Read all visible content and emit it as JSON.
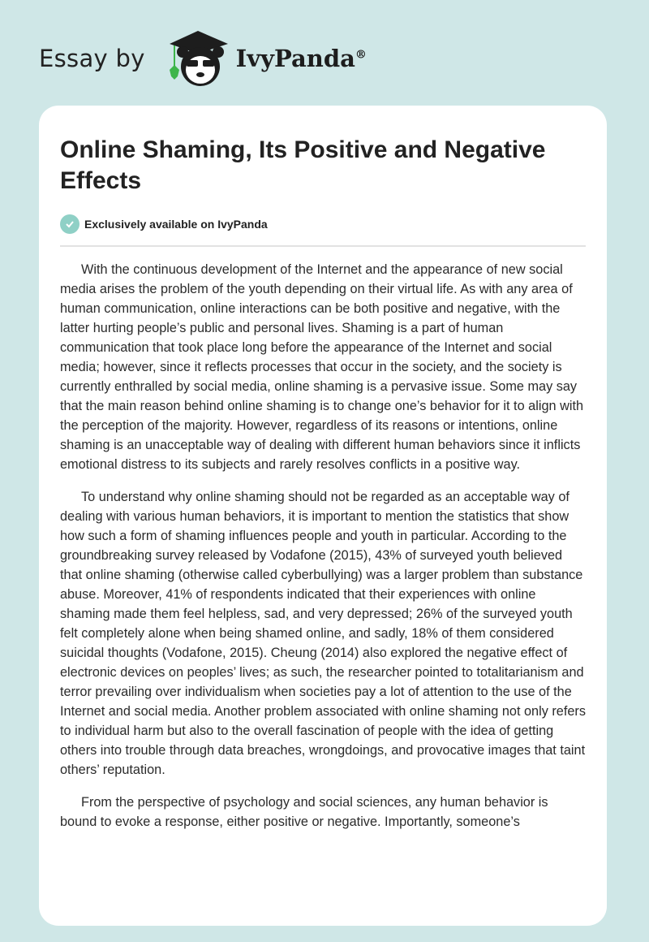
{
  "header": {
    "essay_by": "Essay by",
    "brand": "IvyPanda",
    "registered": "®"
  },
  "article": {
    "title": "Online Shaming, Its Positive and Negative Effects",
    "badge": "Exclusively available on IvyPanda",
    "paragraphs": [
      "With the continuous development of the Internet and the appearance of new social media arises the problem of the youth depending on their virtual life. As with any area of human communication, online interactions can be both positive and negative, with the latter hurting people’s public and personal lives. Shaming is a part of human communication that took place long before the appearance of the Internet and social media; however, since it reflects processes that occur in the society, and the society is currently enthralled by social media, online shaming is a pervasive issue. Some may say that the main reason behind online shaming is to change one’s behavior for it to align with the perception of the majority. However, regardless of its reasons or intentions, online shaming is an unacceptable way of dealing with different human behaviors since it inflicts emotional distress to its subjects and rarely resolves conflicts in a positive way.",
      "To understand why online shaming should not be regarded as an acceptable way of dealing with various human behaviors, it is important to mention the statistics that show how such a form of shaming influences people and youth in particular. According to the groundbreaking survey released by Vodafone (2015), 43% of surveyed youth believed that online shaming (otherwise called cyberbullying) was a larger problem than substance abuse. Moreover, 41% of respondents indicated that their experiences with online shaming made them feel helpless, sad, and very depressed; 26% of the surveyed youth felt completely alone when being shamed online, and sadly, 18% of them considered suicidal thoughts (Vodafone, 2015). Cheung (2014) also explored the negative effect of electronic devices on peoples’ lives; as such, the researcher pointed to totalitarianism and terror prevailing over individualism when societies pay a lot of attention to the use of the Internet and social media. Another problem associated with online shaming not only refers to individual harm but also to the overall fascination of people with the idea of getting others into trouble through data breaches, wrongdoings, and provocative images that taint others’ reputation.",
      "From the perspective of psychology and social sciences, any human behavior is bound to evoke a response, either positive or negative. Importantly, someone’s"
    ]
  },
  "colors": {
    "background": "#cfe7e7",
    "badge": "#8fd0c6",
    "ivy": "#3db54a"
  }
}
